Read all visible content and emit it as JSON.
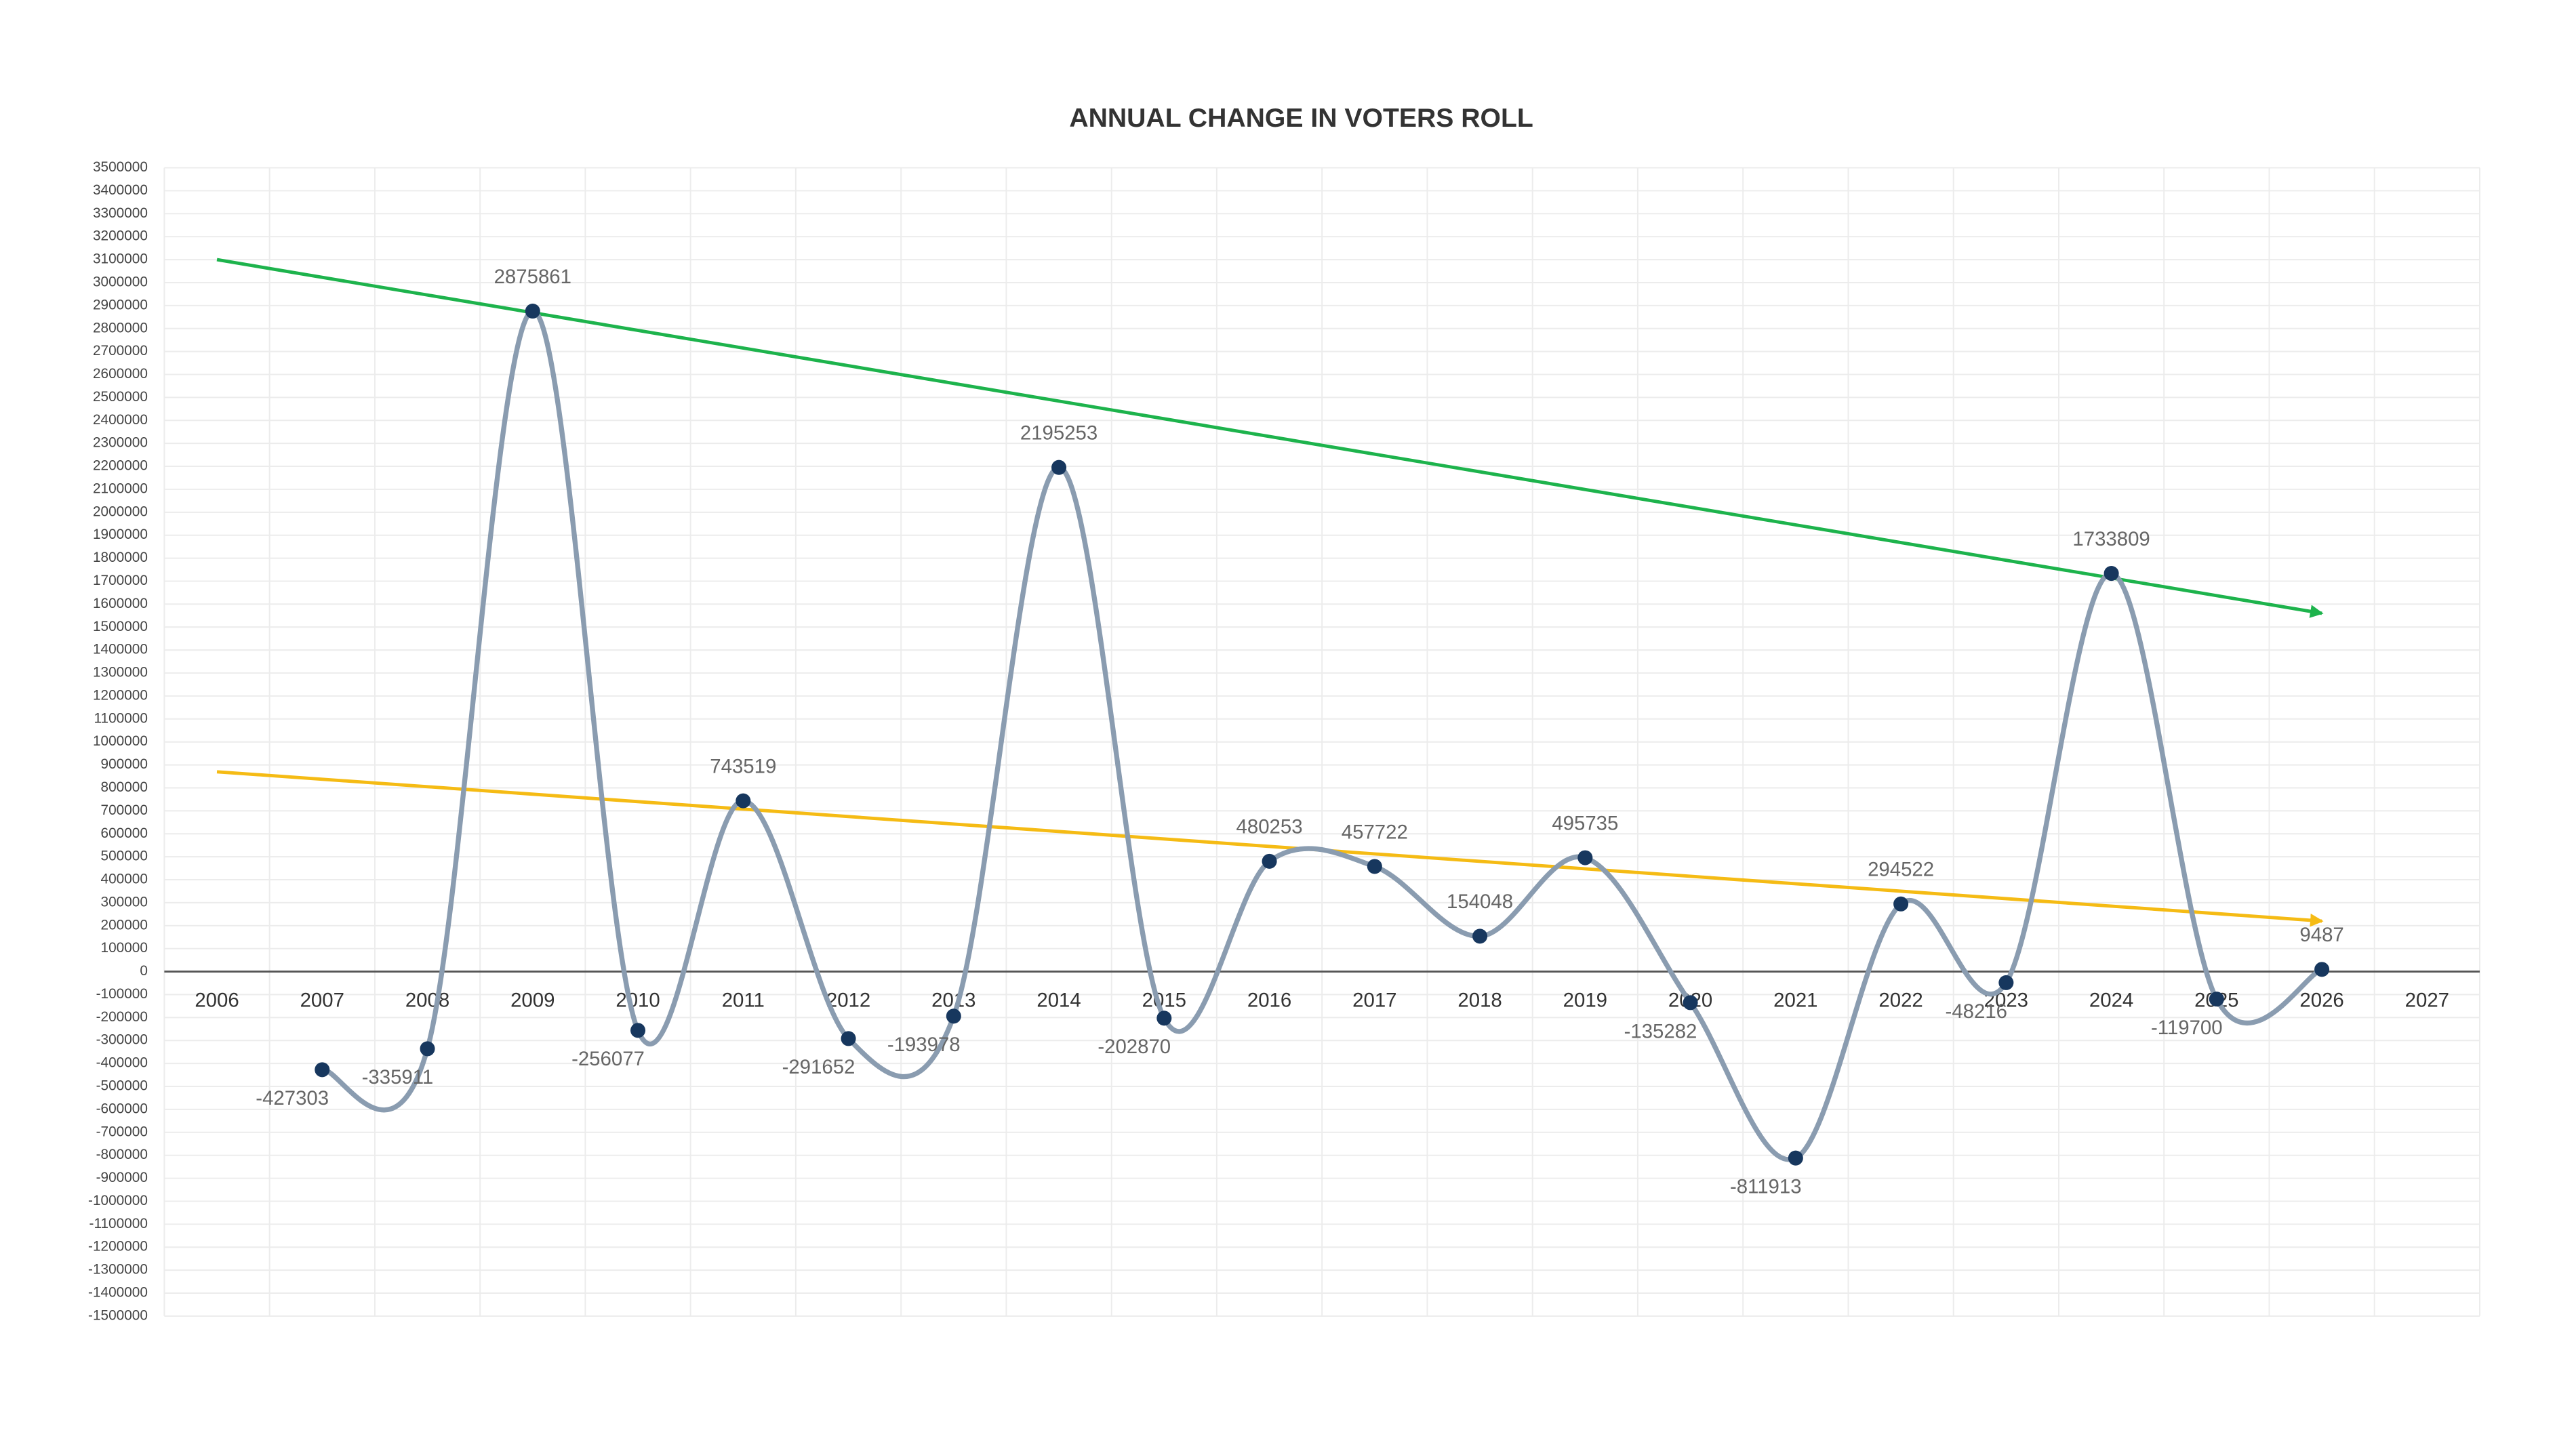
{
  "chart_data": {
    "type": "line",
    "title": "ANNUAL CHANGE IN VOTERS ROLL",
    "x": [
      2007,
      2008,
      2009,
      2010,
      2011,
      2012,
      2013,
      2014,
      2015,
      2016,
      2017,
      2018,
      2019,
      2020,
      2021,
      2022,
      2023,
      2024,
      2025,
      2026
    ],
    "series": [
      {
        "color": "#8a9cb0",
        "marker_color": "#17375e",
        "values": [
          -427303,
          -335911,
          2875861,
          -256077,
          743519,
          -291652,
          -193978,
          2195253,
          -202870,
          480253,
          457722,
          154048,
          495735,
          -135282,
          -811913,
          294522,
          -48216,
          1733809,
          -119700,
          9487
        ]
      }
    ],
    "trend_lines": [
      {
        "color": "#1db34c",
        "x": [
          2006,
          2026
        ],
        "values": [
          3100000,
          1560000
        ]
      },
      {
        "color": "#f5bb14",
        "x": [
          2006,
          2026
        ],
        "values": [
          870000,
          220000
        ]
      }
    ],
    "xlim": [
      2005.5,
      2027.5
    ],
    "xticks": [
      2006,
      2007,
      2008,
      2009,
      2010,
      2011,
      2012,
      2013,
      2014,
      2015,
      2016,
      2017,
      2018,
      2019,
      2020,
      2021,
      2022,
      2023,
      2024,
      2025,
      2026,
      2027
    ],
    "ylim": [
      -1500000,
      3500000
    ],
    "yticks": [
      3500000,
      3400000,
      3300000,
      3200000,
      3100000,
      3000000,
      2900000,
      2800000,
      2700000,
      2600000,
      2500000,
      2400000,
      2300000,
      2200000,
      2100000,
      2000000,
      1900000,
      1800000,
      1700000,
      1600000,
      1500000,
      1400000,
      1300000,
      1200000,
      1100000,
      1000000,
      900000,
      800000,
      700000,
      600000,
      500000,
      400000,
      300000,
      200000,
      100000,
      0,
      -100000,
      -200000,
      -300000,
      -400000,
      -500000,
      -600000,
      -700000,
      -800000,
      -900000,
      -1000000,
      -1100000,
      -1200000,
      -1300000,
      -1400000,
      -1500000
    ],
    "grid": true
  }
}
